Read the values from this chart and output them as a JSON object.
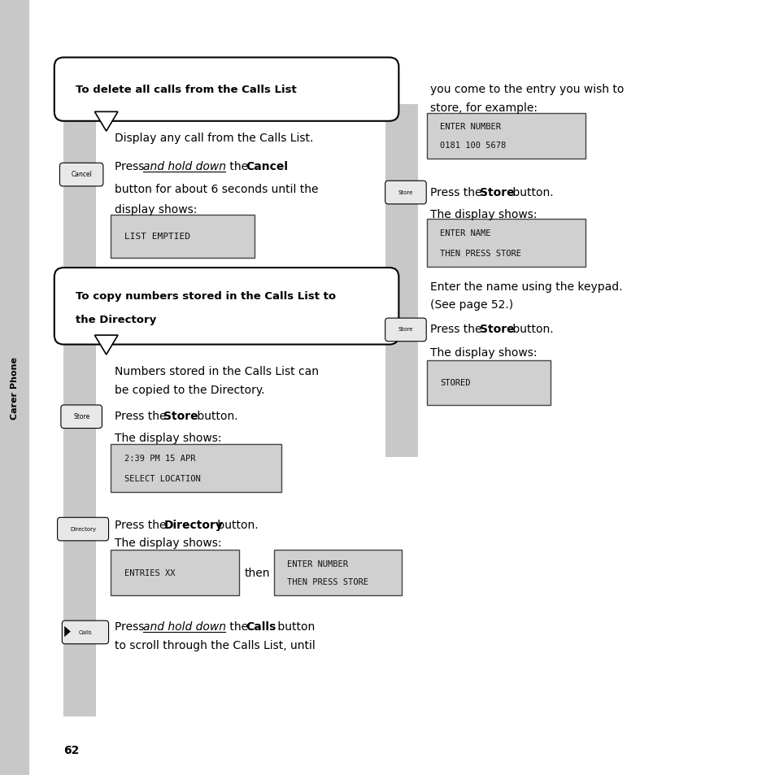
{
  "page_num": "62",
  "bg_color": "#ffffff",
  "sidebar_color": "#c8c8c8",
  "sidebar_label": "Carer Phone",
  "section1_title": "To delete all calls from the Calls List",
  "section2_title_line1": "To copy numbers stored in the Calls List to",
  "section2_title_line2": "the Directory",
  "display_bg": "#d0d0d0",
  "display_border": "#444444"
}
